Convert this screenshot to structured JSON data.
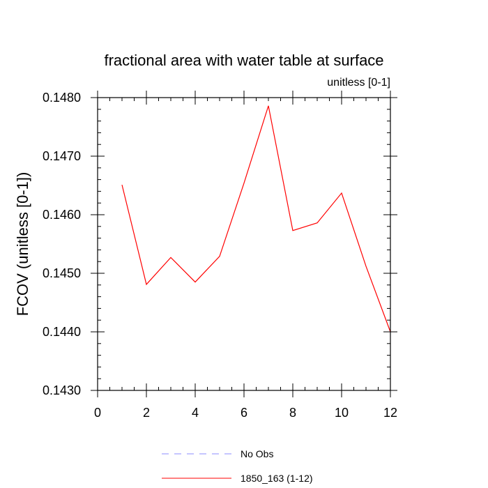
{
  "chart_data": {
    "type": "line",
    "title": "fractional area with water table at surface",
    "subtitle": "unitless [0-1]",
    "xlabel": "",
    "ylabel": "FCOV  (unitless [0-1])",
    "xlim": [
      0,
      12
    ],
    "ylim": [
      0.143,
      0.148
    ],
    "x_ticks": [
      0,
      2,
      4,
      6,
      8,
      10,
      12
    ],
    "x_tick_labels": [
      "0",
      "2",
      "4",
      "6",
      "8",
      "10",
      "12"
    ],
    "y_ticks": [
      0.143,
      0.144,
      0.145,
      0.146,
      0.147,
      0.148
    ],
    "y_tick_labels": [
      "0.1430",
      "0.1440",
      "0.1450",
      "0.1460",
      "0.1470",
      "0.1480"
    ],
    "grid": false,
    "legend_position": "bottom",
    "series": [
      {
        "name": "No Obs",
        "color": "#8c8cff",
        "dash": "dashed",
        "x": [],
        "values": []
      },
      {
        "name": "1850_163 (1-12)",
        "color": "#ff0000",
        "dash": "solid",
        "x": [
          1,
          2,
          3,
          4,
          5,
          6,
          7,
          8,
          9,
          10,
          11,
          12
        ],
        "values": [
          0.14651,
          0.14481,
          0.14527,
          0.14485,
          0.14529,
          0.14654,
          0.14786,
          0.14573,
          0.14586,
          0.14637,
          0.14512,
          0.144
        ]
      }
    ]
  }
}
